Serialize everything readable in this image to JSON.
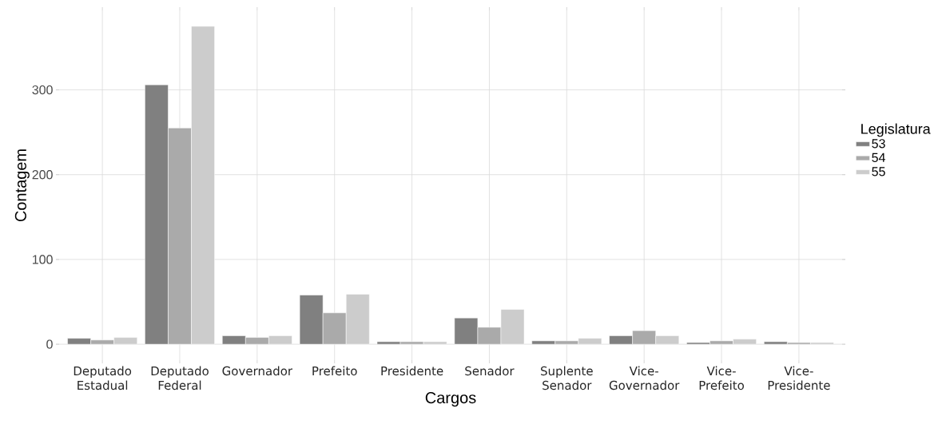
{
  "chart_data": {
    "type": "bar",
    "xlabel": "Cargos",
    "ylabel": "Contagem",
    "legend_title": "Legislatura",
    "categories": [
      "Deputado Estadual",
      "Deputado Federal",
      "Governador",
      "Prefeito",
      "Presidente",
      "Senador",
      "Suplente Senador",
      "Vice-Governador",
      "Vice-Prefeito",
      "Vice-Presidente"
    ],
    "series": [
      {
        "name": "53",
        "color": "#808080",
        "values": [
          7,
          306,
          10,
          58,
          3,
          31,
          4,
          10,
          2,
          3
        ]
      },
      {
        "name": "54",
        "color": "#aaaaaa",
        "values": [
          5,
          255,
          8,
          37,
          3,
          20,
          4,
          16,
          4,
          2
        ]
      },
      {
        "name": "55",
        "color": "#cccccc",
        "values": [
          8,
          375,
          10,
          59,
          3,
          41,
          7,
          10,
          6,
          2
        ]
      }
    ],
    "ylim": [
      -18.75,
      393.75
    ],
    "yticks": [
      0,
      100,
      200,
      300
    ],
    "grid": true,
    "legend": "right"
  }
}
